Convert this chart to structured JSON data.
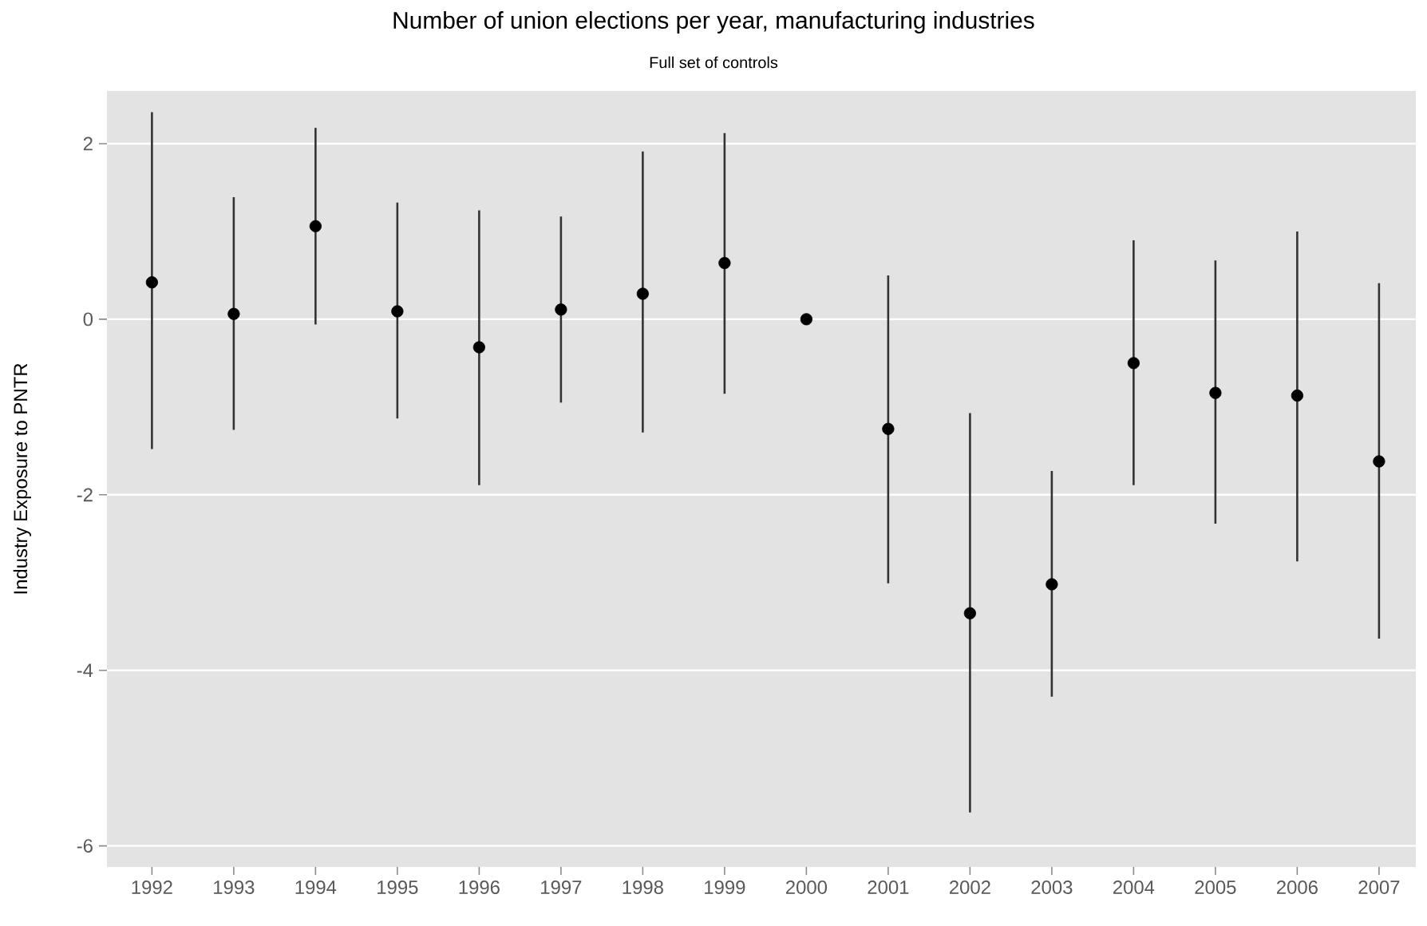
{
  "chart_data": {
    "type": "scatter",
    "title": "Number of union elections per year, manufacturing industries",
    "subtitle": "Full set of controls",
    "ylabel": "Industry Exposure to PNTR",
    "categories": [
      "1992",
      "1993",
      "1994",
      "1995",
      "1996",
      "1997",
      "1998",
      "1999",
      "2000",
      "2001",
      "2002",
      "2003",
      "2004",
      "2005",
      "2006",
      "2007"
    ],
    "values": [
      0.42,
      0.06,
      1.06,
      0.09,
      -0.32,
      0.11,
      0.29,
      0.64,
      0,
      -1.25,
      -3.35,
      -3.02,
      -0.5,
      -0.84,
      -0.87,
      -1.62
    ],
    "errors": [
      [
        -1.48,
        2.36
      ],
      [
        -1.26,
        1.39
      ],
      [
        -0.06,
        2.18
      ],
      [
        -1.13,
        1.33
      ],
      [
        -1.89,
        1.24
      ],
      [
        -0.95,
        1.17
      ],
      [
        -1.29,
        1.91
      ],
      [
        -0.85,
        2.12
      ],
      null,
      [
        -3.01,
        0.5
      ],
      [
        -5.62,
        -1.07
      ],
      [
        -4.3,
        -1.73
      ],
      [
        -1.89,
        0.9
      ],
      [
        -2.33,
        0.67
      ],
      [
        -2.76,
        1.0
      ],
      [
        -3.64,
        0.41
      ]
    ],
    "color": "#000000",
    "marker": "circle",
    "grid": "y",
    "ylim": [
      -6.24,
      2.6
    ],
    "yticks": [
      -6,
      -4,
      -2,
      0,
      2
    ]
  }
}
